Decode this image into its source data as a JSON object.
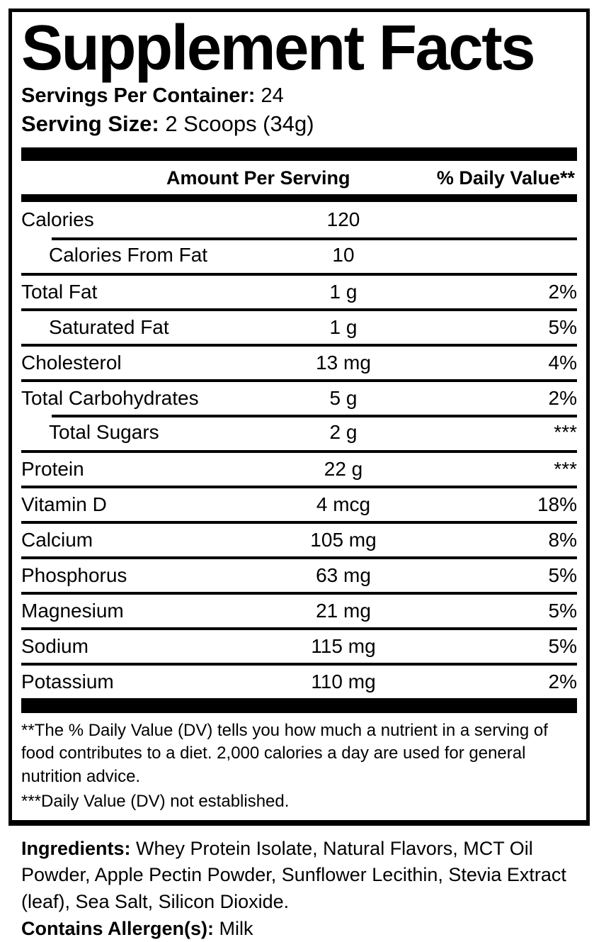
{
  "panel": {
    "title": "Supplement Facts",
    "servings_per_container_label": "Servings Per Container:",
    "servings_per_container_value": "24",
    "serving_size_label": "Serving Size:",
    "serving_size_value": "2 Scoops (34g)"
  },
  "table": {
    "amount_header": "Amount Per Serving",
    "dv_header": "% Daily Value**"
  },
  "nutrients": [
    {
      "name": "Calories",
      "amount": "120",
      "dv": ""
    },
    {
      "name": "Calories From Fat",
      "amount": "10",
      "dv": ""
    },
    {
      "name": "Total Fat",
      "amount": "1 g",
      "dv": "2%"
    },
    {
      "name": "Saturated Fat",
      "amount": "1 g",
      "dv": "5%"
    },
    {
      "name": "Cholesterol",
      "amount": "13 mg",
      "dv": "4%"
    },
    {
      "name": "Total Carbohydrates",
      "amount": "5 g",
      "dv": "2%"
    },
    {
      "name": "Total Sugars",
      "amount": "2 g",
      "dv": "***"
    },
    {
      "name": "Protein",
      "amount": "22 g",
      "dv": "***"
    },
    {
      "name": "Vitamin D",
      "amount": "4 mcg",
      "dv": "18%"
    },
    {
      "name": "Calcium",
      "amount": "105 mg",
      "dv": "8%"
    },
    {
      "name": "Phosphorus",
      "amount": "63 mg",
      "dv": "5%"
    },
    {
      "name": "Magnesium",
      "amount": "21 mg",
      "dv": "5%"
    },
    {
      "name": "Sodium",
      "amount": "115 mg",
      "dv": "5%"
    },
    {
      "name": "Potassium",
      "amount": "110 mg",
      "dv": "2%"
    }
  ],
  "footnotes": {
    "daily_value_note": "**The % Daily Value (DV) tells you how much a nutrient in a serving of food contributes to a diet. 2,000 calories a day are used for general nutrition advice.",
    "not_established_note": "***Daily Value (DV) not established."
  },
  "ingredients": {
    "label": "Ingredients:",
    "text": "Whey Protein Isolate, Natural Flavors, MCT Oil Powder, Apple Pectin Powder, Sunflower Lecithin, Stevia Extract (leaf), Sea Salt, Silicon Dioxide."
  },
  "allergens": {
    "label": "Contains Allergen(s):",
    "text": "Milk"
  },
  "colors": {
    "ink": "#000000",
    "background": "#ffffff"
  }
}
